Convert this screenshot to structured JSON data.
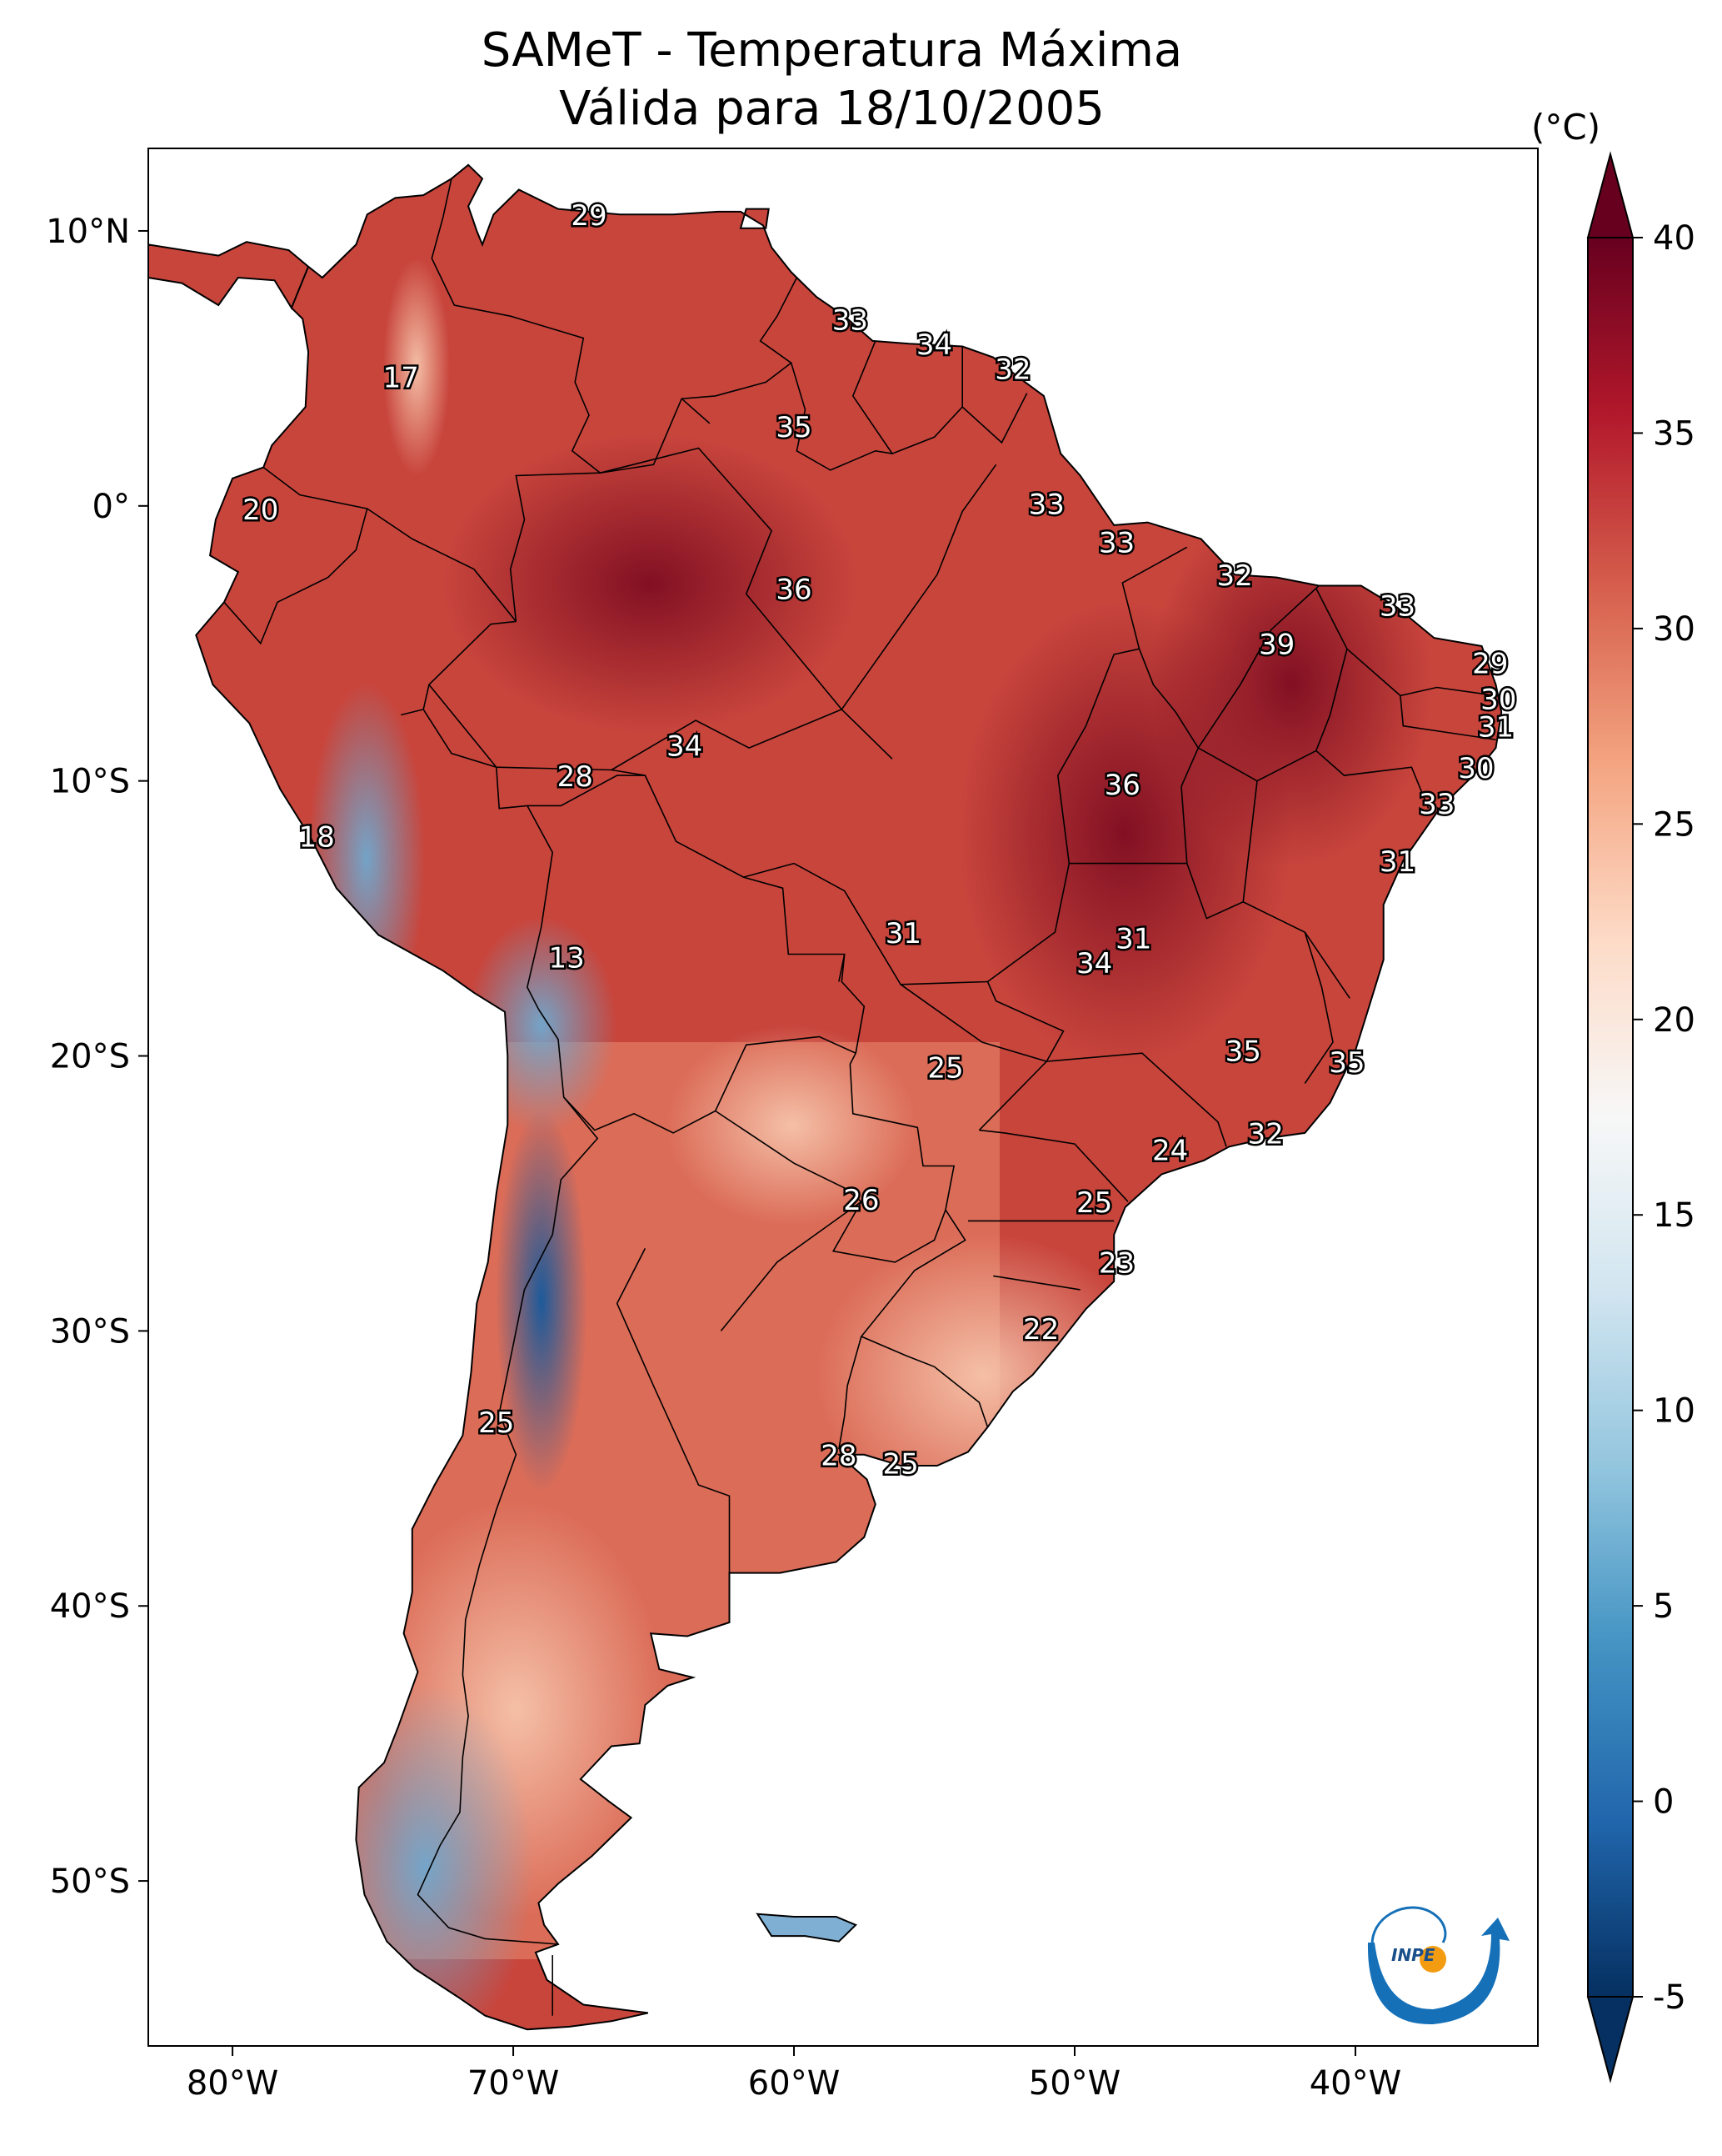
{
  "title": {
    "line1": "SAMeT - Temperatura Máxima",
    "line2": "Válida para 18/10/2005"
  },
  "map": {
    "extent": {
      "lon_min": -83,
      "lon_max": -33.5,
      "lat_min": -56,
      "lat_max": 13
    },
    "lon_ticks": [
      {
        "value": -80,
        "label": "80°W"
      },
      {
        "value": -70,
        "label": "70°W"
      },
      {
        "value": -60,
        "label": "60°W"
      },
      {
        "value": -50,
        "label": "50°W"
      },
      {
        "value": -40,
        "label": "40°W"
      }
    ],
    "lat_ticks": [
      {
        "value": 10,
        "label": "10°N"
      },
      {
        "value": 0,
        "label": "0°"
      },
      {
        "value": -10,
        "label": "10°S"
      },
      {
        "value": -20,
        "label": "20°S"
      },
      {
        "value": -30,
        "label": "30°S"
      },
      {
        "value": -40,
        "label": "40°S"
      },
      {
        "value": -50,
        "label": "50°S"
      }
    ]
  },
  "colorbar": {
    "unit": "(°C)",
    "vmin": -5,
    "vmax": 40,
    "ticks": [
      {
        "value": 40,
        "label": "40"
      },
      {
        "value": 35,
        "label": "35"
      },
      {
        "value": 30,
        "label": "30"
      },
      {
        "value": 25,
        "label": "25"
      },
      {
        "value": 20,
        "label": "20"
      },
      {
        "value": 15,
        "label": "15"
      },
      {
        "value": 10,
        "label": "10"
      },
      {
        "value": 5,
        "label": "5"
      },
      {
        "value": 0,
        "label": "0"
      },
      {
        "value": -5,
        "label": "-5"
      }
    ],
    "colors": [
      "#053061",
      "#2166ac",
      "#4393c3",
      "#92c5de",
      "#d1e5f0",
      "#f7f7f7",
      "#fddbc7",
      "#f4a582",
      "#d6604d",
      "#b2182b",
      "#67001f"
    ]
  },
  "station_values": [
    {
      "lon": -67.3,
      "lat": 10.5,
      "value": "29"
    },
    {
      "lon": -58.0,
      "lat": 6.7,
      "value": "33"
    },
    {
      "lon": -55.0,
      "lat": 5.8,
      "value": "34"
    },
    {
      "lon": -52.2,
      "lat": 4.9,
      "value": "32"
    },
    {
      "lon": -74.0,
      "lat": 4.6,
      "value": "17"
    },
    {
      "lon": -60.0,
      "lat": 2.8,
      "value": "35"
    },
    {
      "lon": -79.0,
      "lat": -0.2,
      "value": "20"
    },
    {
      "lon": -51.0,
      "lat": 0.0,
      "value": "33"
    },
    {
      "lon": -48.5,
      "lat": -1.4,
      "value": "33"
    },
    {
      "lon": -60.0,
      "lat": -3.1,
      "value": "36"
    },
    {
      "lon": -44.3,
      "lat": -2.6,
      "value": "32"
    },
    {
      "lon": -38.5,
      "lat": -3.7,
      "value": "33"
    },
    {
      "lon": -42.8,
      "lat": -5.1,
      "value": "39"
    },
    {
      "lon": -35.2,
      "lat": -5.8,
      "value": "29"
    },
    {
      "lon": -34.9,
      "lat": -7.1,
      "value": "30"
    },
    {
      "lon": -35.0,
      "lat": -8.1,
      "value": "31"
    },
    {
      "lon": -63.9,
      "lat": -8.8,
      "value": "34"
    },
    {
      "lon": -67.8,
      "lat": -9.9,
      "value": "28"
    },
    {
      "lon": -35.7,
      "lat": -9.6,
      "value": "30"
    },
    {
      "lon": -48.3,
      "lat": -10.2,
      "value": "36"
    },
    {
      "lon": -37.1,
      "lat": -10.9,
      "value": "33"
    },
    {
      "lon": -77.0,
      "lat": -12.1,
      "value": "18"
    },
    {
      "lon": -38.5,
      "lat": -13.0,
      "value": "31"
    },
    {
      "lon": -68.1,
      "lat": -16.5,
      "value": "13"
    },
    {
      "lon": -56.1,
      "lat": -15.6,
      "value": "31"
    },
    {
      "lon": -47.9,
      "lat": -15.8,
      "value": "31"
    },
    {
      "lon": -49.3,
      "lat": -16.7,
      "value": "34"
    },
    {
      "lon": -54.6,
      "lat": -20.5,
      "value": "25"
    },
    {
      "lon": -44.0,
      "lat": -19.9,
      "value": "35"
    },
    {
      "lon": -40.3,
      "lat": -20.3,
      "value": "35"
    },
    {
      "lon": -43.2,
      "lat": -22.9,
      "value": "32"
    },
    {
      "lon": -46.6,
      "lat": -23.5,
      "value": "24"
    },
    {
      "lon": -57.6,
      "lat": -25.3,
      "value": "26"
    },
    {
      "lon": -49.3,
      "lat": -25.4,
      "value": "25"
    },
    {
      "lon": -48.5,
      "lat": -27.6,
      "value": "23"
    },
    {
      "lon": -51.2,
      "lat": -30.0,
      "value": "22"
    },
    {
      "lon": -70.6,
      "lat": -33.4,
      "value": "25"
    },
    {
      "lon": -58.4,
      "lat": -34.6,
      "value": "28"
    },
    {
      "lon": -56.2,
      "lat": -34.9,
      "value": "25"
    }
  ],
  "logo": {
    "text": "INPE"
  }
}
